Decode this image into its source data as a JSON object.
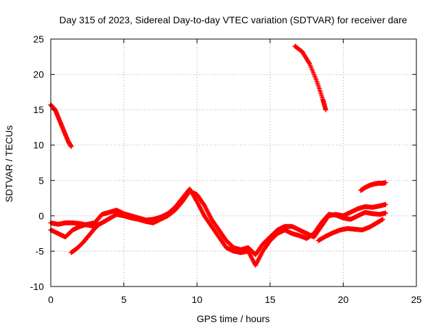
{
  "chart_data": {
    "type": "scatter",
    "title": "Day 315 of 2023, Sidereal Day-to-day VTEC variation (SDTVAR) for receiver dare",
    "xlabel": "GPS time / hours",
    "ylabel": "SDTVAR / TECUs",
    "xlim": [
      0,
      25
    ],
    "ylim": [
      -10,
      25
    ],
    "xticks": [
      0,
      5,
      10,
      15,
      20,
      25
    ],
    "yticks": [
      -10,
      -5,
      0,
      5,
      10,
      15,
      20,
      25
    ],
    "grid": true,
    "marker": "+",
    "series": [
      {
        "name": "segment-early-high",
        "color": "#ff0000",
        "x": [
          0.0,
          0.3,
          0.6,
          0.9,
          1.2,
          1.4
        ],
        "y": [
          15.7,
          15.0,
          13.5,
          12.0,
          10.5,
          9.8
        ]
      },
      {
        "name": "segment-late-high",
        "color": "#ff0000",
        "x": [
          16.7,
          17.2,
          17.7,
          18.2,
          18.6,
          18.8
        ],
        "y": [
          24.0,
          23.2,
          21.5,
          19.0,
          16.5,
          15.0
        ]
      },
      {
        "name": "track-a",
        "color": "#ff0000",
        "x": [
          0.0,
          0.5,
          1.0,
          1.5,
          2.0,
          2.5,
          3.0,
          3.5,
          4.0,
          4.5,
          5.0,
          5.5,
          6.0,
          6.5,
          7.0,
          7.5,
          8.0,
          8.5,
          9.0,
          9.5,
          10.0,
          10.5,
          11.0,
          11.5,
          12.0,
          12.5,
          13.0,
          13.5,
          14.0,
          14.5,
          15.0,
          15.5,
          16.0,
          16.5,
          17.0,
          17.5,
          18.0,
          18.5,
          19.0,
          19.5,
          20.0,
          20.5,
          21.0,
          21.5,
          22.0,
          22.5,
          22.9
        ],
        "y": [
          -1.0,
          -1.2,
          -1.0,
          -1.0,
          -1.1,
          -1.3,
          -1.5,
          -1.0,
          -0.4,
          0.2,
          0.0,
          -0.3,
          -0.5,
          -0.8,
          -1.0,
          -0.5,
          0.0,
          0.8,
          2.0,
          3.5,
          3.0,
          1.5,
          -0.5,
          -2.0,
          -3.5,
          -4.5,
          -4.8,
          -4.5,
          -5.5,
          -4.0,
          -3.0,
          -2.0,
          -1.5,
          -1.5,
          -2.0,
          -2.5,
          -3.0,
          -1.5,
          0.0,
          0.2,
          0.0,
          0.5,
          1.0,
          1.3,
          1.2,
          1.4,
          1.6
        ]
      },
      {
        "name": "track-b",
        "color": "#ff0000",
        "x": [
          0.0,
          0.5,
          1.0,
          1.5,
          2.0,
          2.5,
          3.0,
          3.5,
          4.0,
          4.5,
          5.0,
          5.5,
          6.0,
          6.5,
          7.0,
          7.5,
          8.0,
          8.5,
          9.0,
          9.5,
          10.0,
          10.5,
          11.0,
          11.5,
          12.0,
          12.5,
          13.0,
          13.5,
          14.0,
          14.5,
          15.0,
          15.5,
          16.0,
          16.5,
          17.0,
          17.5,
          18.0,
          18.5,
          19.0,
          19.5,
          20.0,
          20.5,
          21.0,
          21.5,
          22.0,
          22.5,
          22.9
        ],
        "y": [
          -2.0,
          -2.5,
          -3.0,
          -2.0,
          -1.5,
          -1.2,
          -1.0,
          0.2,
          0.5,
          0.8,
          0.3,
          0.0,
          -0.3,
          -0.6,
          -0.5,
          -0.2,
          0.3,
          1.2,
          2.5,
          3.8,
          2.0,
          0.0,
          -1.5,
          -3.0,
          -4.5,
          -5.0,
          -5.2,
          -5.0,
          -7.0,
          -5.0,
          -3.5,
          -2.5,
          -2.0,
          -2.5,
          -2.8,
          -3.2,
          -2.5,
          -1.0,
          0.2,
          0.1,
          -0.3,
          -0.5,
          0.0,
          0.5,
          0.3,
          0.2,
          0.4
        ]
      },
      {
        "name": "track-c",
        "color": "#ff0000",
        "x": [
          1.4,
          1.8,
          2.2,
          2.6,
          3.0,
          3.3
        ],
        "y": [
          -5.2,
          -4.6,
          -3.8,
          -2.8,
          -1.8,
          -1.2
        ]
      },
      {
        "name": "track-d",
        "color": "#ff0000",
        "x": [
          18.3,
          18.8,
          19.3,
          19.8,
          20.3,
          20.8,
          21.3,
          21.8,
          22.3,
          22.7
        ],
        "y": [
          -3.5,
          -2.9,
          -2.4,
          -2.0,
          -1.8,
          -1.9,
          -2.0,
          -1.6,
          -1.0,
          -0.5
        ]
      },
      {
        "name": "track-e",
        "color": "#ff0000",
        "x": [
          21.2,
          21.5,
          21.8,
          22.1,
          22.4,
          22.7,
          22.9
        ],
        "y": [
          3.6,
          4.0,
          4.3,
          4.5,
          4.6,
          4.6,
          4.7
        ]
      }
    ]
  }
}
